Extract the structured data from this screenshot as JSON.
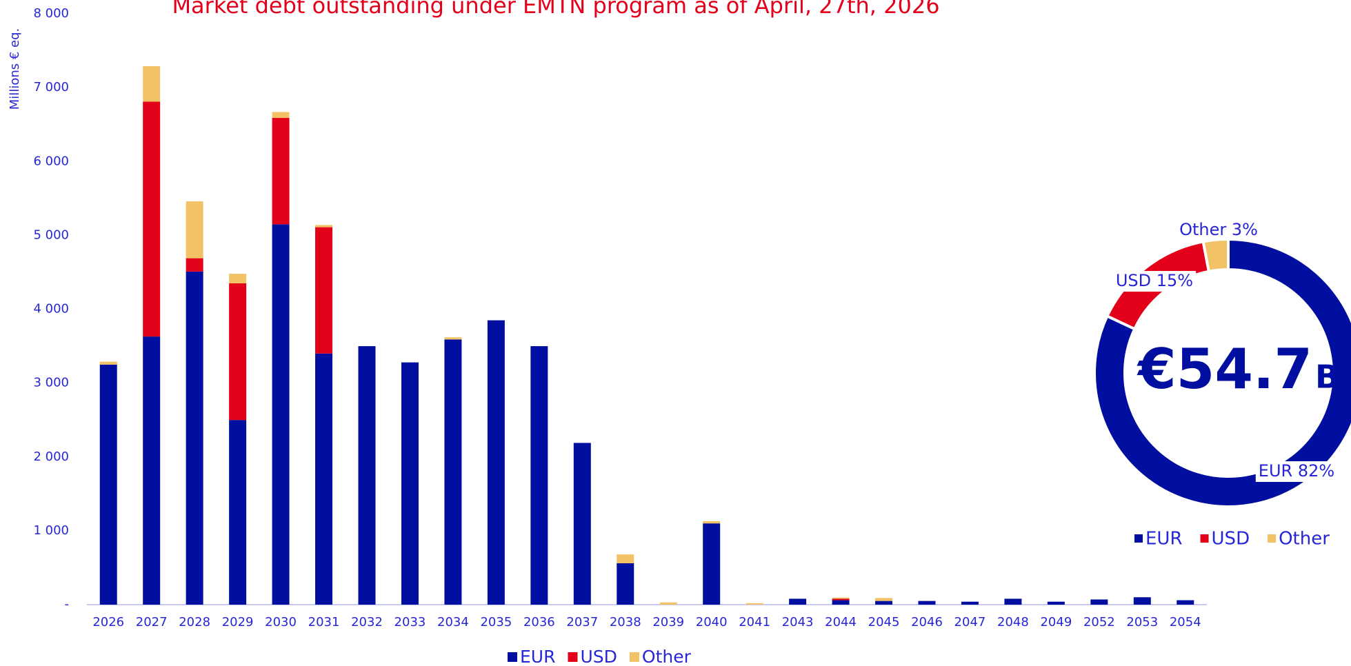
{
  "chart_data": [
    {
      "type": "bar",
      "stacked": true,
      "title": "Market debt outstanding under EMTN program as of April, 27th, 2026",
      "y_label": "Millions € eq.",
      "categories": [
        "2026",
        "2027",
        "2028",
        "2029",
        "2030",
        "2031",
        "2032",
        "2033",
        "2034",
        "2035",
        "2036",
        "2037",
        "2038",
        "2039",
        "2040",
        "2041",
        "2043",
        "2044",
        "2045",
        "2046",
        "2047",
        "2048",
        "2049",
        "2052",
        "2053",
        "2054"
      ],
      "series": [
        {
          "name": "EUR",
          "color": "#000f9f",
          "values": [
            3250,
            3630,
            4510,
            2500,
            5150,
            3400,
            3500,
            3280,
            3590,
            3850,
            3500,
            2190,
            560,
            0,
            1100,
            0,
            80,
            60,
            50,
            50,
            40,
            80,
            40,
            70,
            100,
            60
          ]
        },
        {
          "name": "USD",
          "color": "#e2001a",
          "values": [
            0,
            3180,
            180,
            1850,
            1440,
            1710,
            0,
            0,
            0,
            0,
            0,
            0,
            0,
            0,
            0,
            0,
            0,
            20,
            0,
            0,
            0,
            0,
            0,
            0,
            0,
            0
          ]
        },
        {
          "name": "Other",
          "color": "#f2c366",
          "values": [
            40,
            480,
            770,
            130,
            80,
            30,
            0,
            0,
            30,
            0,
            0,
            0,
            120,
            30,
            30,
            20,
            0,
            15,
            40,
            0,
            0,
            0,
            0,
            0,
            0,
            0
          ]
        }
      ],
      "ylim": [
        0,
        8000
      ],
      "yticks": [
        {
          "value": 0,
          "label": "-"
        },
        {
          "value": 1000,
          "label": "1 000"
        },
        {
          "value": 2000,
          "label": "2 000"
        },
        {
          "value": 3000,
          "label": "3 000"
        },
        {
          "value": 4000,
          "label": "4 000"
        },
        {
          "value": 5000,
          "label": "5 000"
        },
        {
          "value": 6000,
          "label": "6 000"
        },
        {
          "value": 7000,
          "label": "7 000"
        },
        {
          "value": 8000,
          "label": "8 000"
        }
      ],
      "legend": "bottom"
    },
    {
      "type": "donut",
      "center_value": "€54.7",
      "center_unit": "Bn",
      "categories": [
        "EUR",
        "USD",
        "Other"
      ],
      "values": [
        82,
        15,
        3
      ],
      "value_labels": [
        "EUR 82%",
        "USD 15%",
        "Other 3%"
      ],
      "colors": [
        "#000f9f",
        "#e2001a",
        "#f2c366"
      ],
      "legend": "bottom"
    }
  ]
}
